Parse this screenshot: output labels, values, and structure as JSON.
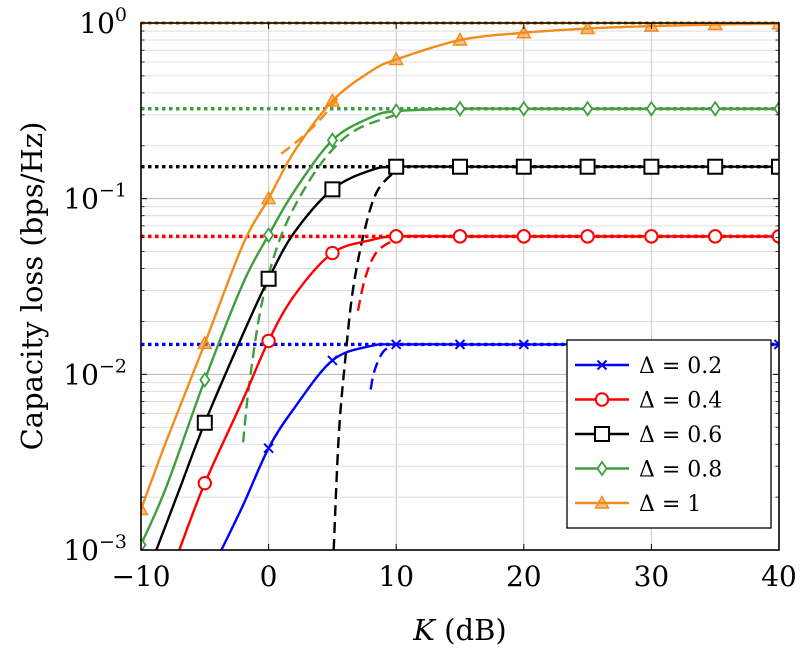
{
  "chart_data": {
    "type": "line",
    "title": "",
    "xlabel_var": "K",
    "xlabel_unit": " (dB)",
    "ylabel": "Capacity loss (bps/Hz)",
    "xlim": [
      -10,
      40
    ],
    "ylim": [
      0.001,
      1
    ],
    "yscale": "log",
    "grid": true,
    "x_ticks": [
      -10,
      0,
      10,
      20,
      30,
      40
    ],
    "x_tick_labels": [
      "−10",
      "0",
      "10",
      "20",
      "30",
      "40"
    ],
    "y_ticks": [
      {
        "value": 0.001,
        "base": "10",
        "exp": "−3"
      },
      {
        "value": 0.01,
        "base": "10",
        "exp": "−2"
      },
      {
        "value": 0.1,
        "base": "10",
        "exp": "−1"
      },
      {
        "value": 1,
        "base": "10",
        "exp": "0"
      }
    ],
    "legend_position": "bottom-right",
    "series": [
      {
        "name": "Δ = 0.2",
        "color": "#0000ff",
        "marker": "x",
        "x": [
          -3.7,
          -2,
          0,
          2,
          5,
          8,
          10,
          15,
          20,
          25,
          30,
          35,
          40
        ],
        "y": [
          0.001,
          0.0018,
          0.0038,
          0.0064,
          0.012,
          0.0145,
          0.0148,
          0.0148,
          0.0148,
          0.0148,
          0.0148,
          0.0148,
          0.0148
        ],
        "marker_x": [
          0,
          5,
          10,
          15,
          20,
          25,
          30,
          35,
          40
        ],
        "marker_y": [
          0.0038,
          0.012,
          0.0148,
          0.0148,
          0.0148,
          0.0148,
          0.0148,
          0.0148,
          0.0148
        ],
        "asymptote": 0.0148,
        "approx_x": [
          8,
          8.3,
          9,
          10
        ],
        "approx_y": [
          0.0082,
          0.0105,
          0.0135,
          0.0148
        ]
      },
      {
        "name": "Δ = 0.4",
        "color": "#ff0000",
        "marker": "o",
        "x": [
          -7,
          -5,
          -2,
          0,
          2,
          5,
          8,
          10,
          15,
          20,
          25,
          30,
          35,
          40
        ],
        "y": [
          0.001,
          0.0024,
          0.0072,
          0.0155,
          0.028,
          0.049,
          0.058,
          0.061,
          0.061,
          0.061,
          0.061,
          0.061,
          0.061,
          0.061
        ],
        "marker_x": [
          -5,
          0,
          5,
          10,
          15,
          20,
          25,
          30,
          35,
          40
        ],
        "marker_y": [
          0.0024,
          0.0155,
          0.049,
          0.061,
          0.061,
          0.061,
          0.061,
          0.061,
          0.061,
          0.061
        ],
        "asymptote": 0.061,
        "approx_x": [
          7,
          7.6,
          8.5,
          10
        ],
        "approx_y": [
          0.023,
          0.036,
          0.05,
          0.059
        ]
      },
      {
        "name": "Δ = 0.6",
        "color": "#000000",
        "marker": "square",
        "x": [
          -8.8,
          -7,
          -5,
          -2,
          0,
          2,
          5,
          8,
          10,
          15,
          20,
          25,
          30,
          35,
          40
        ],
        "y": [
          0.001,
          0.0022,
          0.0053,
          0.017,
          0.035,
          0.064,
          0.113,
          0.145,
          0.152,
          0.152,
          0.152,
          0.152,
          0.152,
          0.152,
          0.152
        ],
        "marker_x": [
          -5,
          0,
          5,
          10,
          15,
          20,
          25,
          30,
          35,
          40
        ],
        "marker_y": [
          0.0053,
          0.035,
          0.113,
          0.152,
          0.152,
          0.152,
          0.152,
          0.152,
          0.152,
          0.152
        ],
        "asymptote": 0.152,
        "approx_x": [
          5.1,
          5.5,
          6,
          6.6,
          7.5,
          8.5,
          10
        ],
        "approx_y": [
          0.001,
          0.0045,
          0.012,
          0.03,
          0.065,
          0.11,
          0.145
        ]
      },
      {
        "name": "Δ = 0.8",
        "color": "#3f9f3f",
        "marker": "diamond",
        "x": [
          -10,
          -8,
          -5,
          -2,
          0,
          2,
          5,
          8,
          10,
          15,
          20,
          25,
          30,
          35,
          40
        ],
        "y": [
          0.00107,
          0.0023,
          0.0093,
          0.033,
          0.062,
          0.11,
          0.215,
          0.29,
          0.315,
          0.325,
          0.325,
          0.325,
          0.325,
          0.325,
          0.325
        ],
        "marker_x": [
          -10,
          -5,
          0,
          5,
          10,
          15,
          20,
          25,
          30,
          35,
          40
        ],
        "marker_y": [
          0.00107,
          0.0093,
          0.062,
          0.215,
          0.315,
          0.325,
          0.325,
          0.325,
          0.325,
          0.325,
          0.325
        ],
        "asymptote": 0.325,
        "approx_x": [
          -2,
          -1.5,
          -0.5,
          1,
          3,
          5,
          7,
          10
        ],
        "approx_y": [
          0.0041,
          0.009,
          0.026,
          0.062,
          0.12,
          0.19,
          0.25,
          0.3
        ]
      },
      {
        "name": "Δ = 1",
        "color": "#f28c1c",
        "marker": "triangle",
        "x": [
          -10,
          -8,
          -5,
          -2,
          0,
          2,
          5,
          8,
          10,
          15,
          20,
          25,
          30,
          35,
          40
        ],
        "y": [
          0.0017,
          0.0042,
          0.015,
          0.055,
          0.1,
          0.185,
          0.36,
          0.53,
          0.62,
          0.8,
          0.88,
          0.93,
          0.96,
          0.98,
          0.99
        ],
        "marker_x": [
          -10,
          -5,
          0,
          5,
          10,
          15,
          20,
          25,
          30,
          35,
          40
        ],
        "marker_y": [
          0.0017,
          0.015,
          0.1,
          0.36,
          0.62,
          0.8,
          0.88,
          0.93,
          0.96,
          0.98,
          0.99
        ],
        "asymptote": 1.0,
        "approx_x": [
          1,
          2.5,
          4,
          5.5
        ],
        "approx_y": [
          0.18,
          0.22,
          0.28,
          0.38
        ]
      }
    ]
  }
}
